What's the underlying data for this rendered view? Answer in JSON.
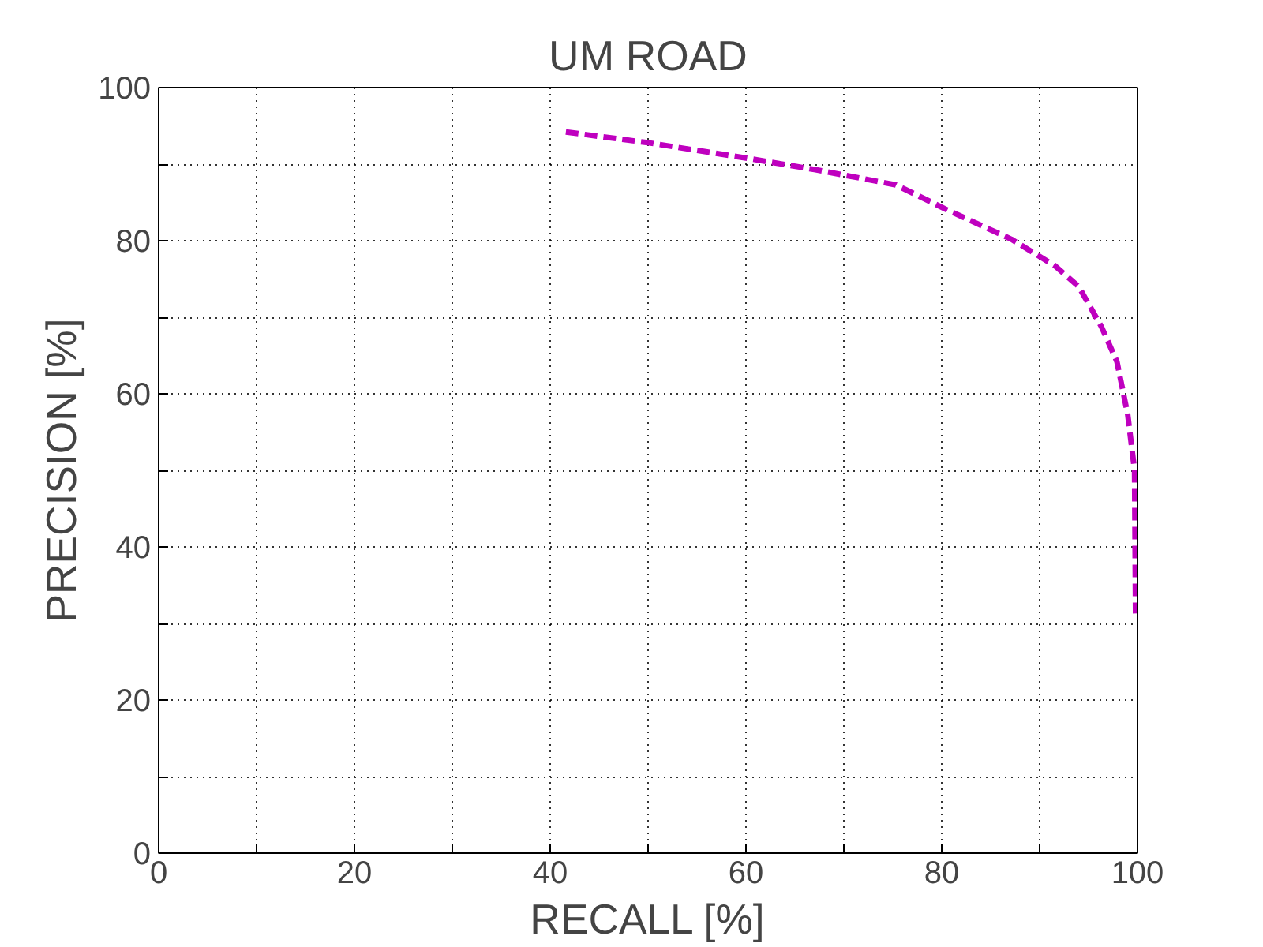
{
  "chart_data": {
    "type": "line",
    "title": "UM ROAD",
    "xlabel": "RECALL [%]",
    "ylabel": "PRECISION [%]",
    "xlim": [
      0,
      100
    ],
    "ylim": [
      0,
      100
    ],
    "xticks": [
      0,
      {
        "value": 10,
        "label": null
      },
      20,
      {
        "value": 30,
        "label": null
      },
      40,
      {
        "value": 50,
        "label": null
      },
      60,
      {
        "value": 70,
        "label": null
      },
      80,
      {
        "value": 90,
        "label": null
      },
      100
    ],
    "yticks": [
      0,
      {
        "value": 10,
        "label": null
      },
      20,
      {
        "value": 30,
        "label": null
      },
      40,
      {
        "value": 50,
        "label": null
      },
      60,
      {
        "value": 70,
        "label": null
      },
      80,
      {
        "value": 90,
        "label": null
      },
      100
    ],
    "grid": true,
    "line_style": "dashed",
    "marker": "none",
    "series": [
      {
        "color": "#bf00bf",
        "x": [
          41.6,
          50,
          60,
          67,
          75.3,
          80.6,
          87.1,
          91.6,
          94,
          96.3,
          97.9,
          99,
          99.7,
          99.8
        ],
        "values": [
          94.2,
          92.8,
          90.8,
          89.3,
          87.3,
          84,
          80.2,
          76.7,
          74,
          68.8,
          64.2,
          57.3,
          50,
          31.3
        ]
      }
    ]
  }
}
